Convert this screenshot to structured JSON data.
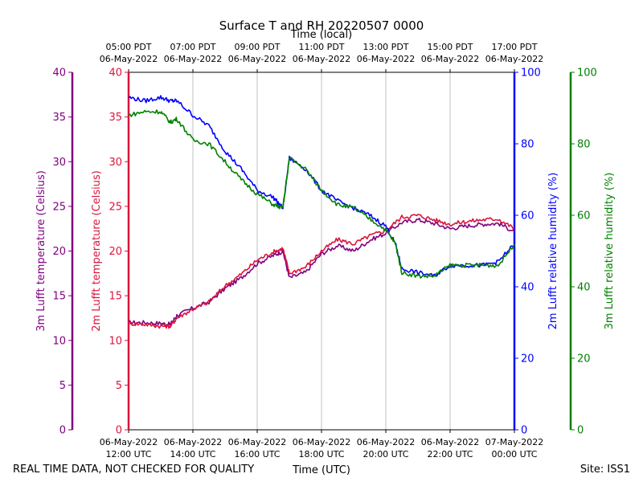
{
  "chart_data": {
    "type": "line",
    "title": "Surface T and RH 20220507 0000",
    "top_axis_label": "Time (local)",
    "bottom_axis_label": "Time (UTC)",
    "footer_left": "REAL TIME DATA, NOT CHECKED FOR QUALITY",
    "footer_right": "Site: ISS1",
    "x_range_hours": [
      12,
      24
    ],
    "x_ticks_utc": [
      {
        "hour": 12,
        "date": "06-May-2022",
        "time": "12:00 UTC"
      },
      {
        "hour": 14,
        "date": "06-May-2022",
        "time": "14:00 UTC"
      },
      {
        "hour": 16,
        "date": "06-May-2022",
        "time": "16:00 UTC"
      },
      {
        "hour": 18,
        "date": "06-May-2022",
        "time": "18:00 UTC"
      },
      {
        "hour": 20,
        "date": "06-May-2022",
        "time": "20:00 UTC"
      },
      {
        "hour": 22,
        "date": "06-May-2022",
        "time": "22:00 UTC"
      },
      {
        "hour": 24,
        "date": "07-May-2022",
        "time": "00:00 UTC"
      }
    ],
    "x_ticks_local": [
      {
        "hour": 12,
        "time": "05:00 PDT",
        "date": "06-May-2022"
      },
      {
        "hour": 14,
        "time": "07:00 PDT",
        "date": "06-May-2022"
      },
      {
        "hour": 16,
        "time": "09:00 PDT",
        "date": "06-May-2022"
      },
      {
        "hour": 18,
        "time": "11:00 PDT",
        "date": "06-May-2022"
      },
      {
        "hour": 20,
        "time": "13:00 PDT",
        "date": "06-May-2022"
      },
      {
        "hour": 22,
        "time": "15:00 PDT",
        "date": "06-May-2022"
      },
      {
        "hour": 24,
        "time": "17:00 PDT",
        "date": "06-May-2022"
      }
    ],
    "y_axes": [
      {
        "id": "t3",
        "label": "3m Lufft temperature (Celsius)",
        "color": "#800080",
        "ylim": [
          0,
          40
        ],
        "ticks": [
          0,
          5,
          10,
          15,
          20,
          25,
          30,
          35,
          40
        ]
      },
      {
        "id": "t2",
        "label": "2m Lufft temperature (Celsius)",
        "color": "#dc143c",
        "ylim": [
          0,
          40
        ],
        "ticks": [
          0,
          5,
          10,
          15,
          20,
          25,
          30,
          35,
          40
        ]
      },
      {
        "id": "rh2",
        "label": "2m Lufft relative humidity (%)",
        "color": "#0000ff",
        "ylim": [
          0,
          100
        ],
        "ticks": [
          0,
          20,
          40,
          60,
          80,
          100
        ]
      },
      {
        "id": "rh3",
        "label": "3m Lufft relative humidity (%)",
        "color": "#008000",
        "ylim": [
          0,
          100
        ],
        "ticks": [
          0,
          20,
          40,
          60,
          80,
          100
        ]
      }
    ],
    "series": [
      {
        "name": "3m Lufft temperature",
        "axis": "t3",
        "color": "#800080",
        "x": [
          12.0,
          12.5,
          13.0,
          13.3,
          13.5,
          14.0,
          14.5,
          15.0,
          15.5,
          16.0,
          16.5,
          16.8,
          17.0,
          17.5,
          18.0,
          18.5,
          19.0,
          19.5,
          20.0,
          20.5,
          21.0,
          21.5,
          22.0,
          22.5,
          23.0,
          23.5,
          24.0
        ],
        "values": [
          12.0,
          12.0,
          11.9,
          11.8,
          12.8,
          13.6,
          14.3,
          15.8,
          17.0,
          18.6,
          19.5,
          20.0,
          17.0,
          17.6,
          19.7,
          20.6,
          20.0,
          21.2,
          22.0,
          23.2,
          23.5,
          23.1,
          22.5,
          22.8,
          23.0,
          23.1,
          22.2
        ]
      },
      {
        "name": "2m Lufft temperature",
        "axis": "t2",
        "color": "#dc143c",
        "x": [
          12.0,
          12.5,
          13.0,
          13.3,
          13.5,
          14.0,
          14.5,
          15.0,
          15.5,
          16.0,
          16.5,
          16.8,
          17.0,
          17.5,
          18.0,
          18.5,
          19.0,
          19.5,
          20.0,
          20.5,
          21.0,
          21.5,
          22.0,
          22.5,
          23.0,
          23.5,
          24.0
        ],
        "values": [
          11.9,
          11.8,
          11.6,
          11.6,
          12.5,
          13.5,
          14.3,
          16.1,
          17.4,
          19.0,
          19.9,
          20.3,
          17.5,
          18.2,
          20.0,
          21.3,
          20.8,
          21.7,
          22.3,
          23.8,
          24.0,
          23.5,
          23.0,
          23.3,
          23.5,
          23.6,
          22.5
        ]
      },
      {
        "name": "2m Lufft relative humidity",
        "axis": "rh2",
        "color": "#0000ff",
        "x": [
          12.0,
          12.5,
          13.0,
          13.3,
          13.5,
          14.0,
          14.5,
          15.0,
          15.5,
          16.0,
          16.5,
          16.8,
          17.0,
          17.5,
          18.0,
          18.5,
          19.0,
          19.5,
          20.0,
          20.3,
          20.5,
          21.0,
          21.5,
          22.0,
          22.5,
          23.0,
          23.5,
          24.0
        ],
        "values": [
          93,
          92,
          93,
          92,
          92,
          88,
          85,
          78,
          73,
          67,
          65,
          62,
          76,
          73,
          67,
          64,
          62,
          60,
          57,
          52,
          45,
          44,
          43,
          46,
          46,
          46,
          47,
          52
        ]
      },
      {
        "name": "3m Lufft relative humidity",
        "axis": "rh3",
        "color": "#008000",
        "x": [
          12.0,
          12.5,
          13.0,
          13.3,
          13.5,
          14.0,
          14.5,
          15.0,
          15.5,
          16.0,
          16.5,
          16.8,
          17.0,
          17.5,
          18.0,
          18.5,
          19.0,
          19.5,
          20.0,
          20.3,
          20.5,
          21.0,
          21.5,
          22.0,
          22.5,
          23.0,
          23.5,
          24.0
        ],
        "values": [
          88,
          89,
          89,
          86,
          87,
          81,
          80,
          75,
          70,
          66,
          63,
          62,
          76,
          73,
          67,
          63,
          62,
          59,
          56,
          52,
          44,
          43,
          43,
          46,
          46,
          46,
          46,
          52
        ]
      }
    ]
  }
}
